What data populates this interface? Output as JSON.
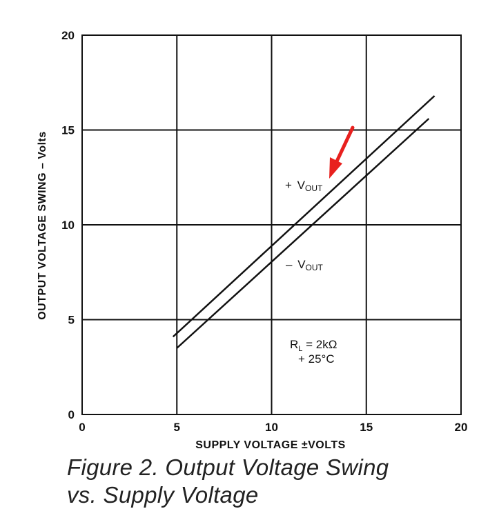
{
  "chart_data": {
    "type": "line",
    "xlabel": "SUPPLY VOLTAGE ±VOLTS",
    "ylabel": "OUTPUT VOLTAGE SWING – Volts",
    "xlim": [
      0,
      20
    ],
    "ylim": [
      0,
      20
    ],
    "xticks": [
      "0",
      "5",
      "10",
      "15",
      "20"
    ],
    "yticks": [
      "0",
      "5",
      "10",
      "15",
      "20"
    ],
    "grid": true,
    "series": [
      {
        "name": "+VOUT",
        "x": [
          4.8,
          18.6
        ],
        "y": [
          4.1,
          16.8
        ]
      },
      {
        "name": "–VOUT",
        "x": [
          5.0,
          18.3
        ],
        "y": [
          3.5,
          15.6
        ]
      }
    ],
    "annotations": {
      "plus_vout": {
        "sign": "+",
        "v": "V",
        "sub": "OUT"
      },
      "minus_vout": {
        "sign": "–",
        "v": "V",
        "sub": "OUT"
      },
      "condition_line1_r": "R",
      "condition_line1_sub": "L",
      "condition_line1_rest": " = 2kΩ",
      "condition_line2": "+ 25°C"
    },
    "highlight_arrow": {
      "color": "#e8201e",
      "points_to": "+VOUT"
    }
  },
  "caption": {
    "line1": "Figure 2.  Output Voltage Swing",
    "line2": "vs. Supply Voltage"
  }
}
